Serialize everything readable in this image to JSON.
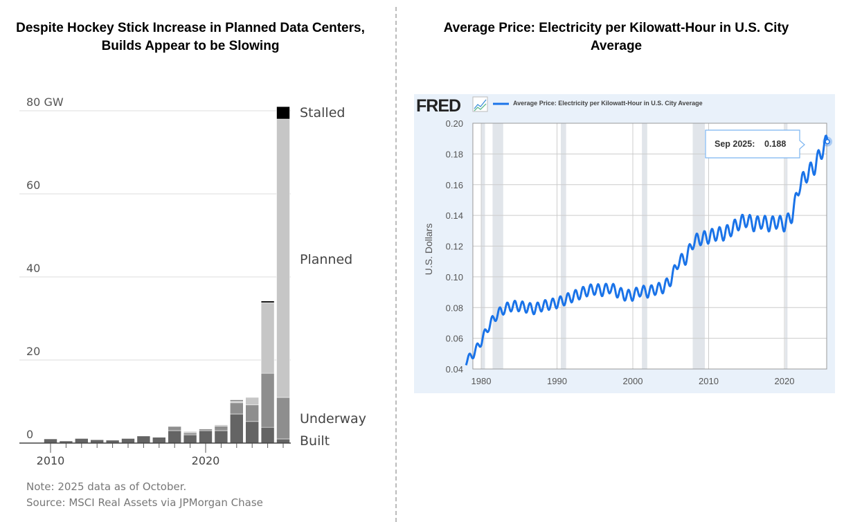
{
  "chart_data": [
    {
      "type": "bar",
      "stacked": true,
      "title": "Despite Hockey Stick Increase in Planned Data Centers, Builds Appear to be Slowing",
      "ylabel_unit": "GW",
      "ylim": [
        0,
        80
      ],
      "yticks": [
        "0",
        "20",
        "40",
        "60",
        "80 GW"
      ],
      "ytick_values": [
        0,
        20,
        40,
        60,
        80
      ],
      "xtick_labels": [
        "2010",
        "2020"
      ],
      "categories": [
        2010,
        2011,
        2012,
        2013,
        2014,
        2015,
        2016,
        2017,
        2018,
        2019,
        2020,
        2021,
        2022,
        2023,
        2024,
        2025
      ],
      "series": [
        {
          "name": "Built",
          "color": "#646464",
          "values": [
            1.0,
            0.5,
            1.1,
            0.8,
            0.7,
            1.1,
            1.7,
            1.4,
            3.0,
            2.0,
            3.0,
            3.0,
            7.0,
            5.2,
            3.8,
            1.0
          ]
        },
        {
          "name": "Underway",
          "color": "#8e8e8e",
          "values": [
            0,
            0,
            0,
            0,
            0,
            0,
            0,
            0,
            1.0,
            0.5,
            0.4,
            1.1,
            2.7,
            4.0,
            13.0,
            10.0
          ]
        },
        {
          "name": "Planned",
          "color": "#c6c6c6",
          "values": [
            0,
            0,
            0,
            0,
            0,
            0,
            0,
            0,
            0,
            0.3,
            0,
            0.3,
            0.5,
            1.8,
            17.0,
            67.0
          ]
        },
        {
          "name": "Stalled",
          "color": "#000000",
          "values": [
            0,
            0,
            0,
            0,
            0,
            0,
            0,
            0,
            0,
            0,
            0,
            0,
            0.2,
            0,
            0.4,
            3.0
          ]
        }
      ],
      "series_labels": [
        "Stalled",
        "Planned",
        "Underway",
        "Built"
      ],
      "notes": [
        "Note: 2025 data as of October.",
        "Source: MSCI Real Assets via JPMorgan Chase"
      ]
    },
    {
      "type": "line",
      "title": "Average Price: Electricity per Kilowatt-Hour in U.S. City Average",
      "logo": "FRED",
      "legend": "Average Price: Electricity per Kilowatt-Hour in U.S. City Average",
      "ylabel": "U.S. Dollars",
      "ylim": [
        0.04,
        0.2
      ],
      "yticks": [
        "0.04",
        "0.06",
        "0.08",
        "0.10",
        "0.12",
        "0.14",
        "0.16",
        "0.18",
        "0.20"
      ],
      "ytick_values": [
        0.04,
        0.06,
        0.08,
        0.1,
        0.12,
        0.14,
        0.16,
        0.18,
        0.2
      ],
      "xticks": [
        "1980",
        "1990",
        "2000",
        "2010",
        "2020"
      ],
      "xtick_values": [
        1980,
        1990,
        2000,
        2010,
        2020
      ],
      "line_color": "#1a73e8",
      "recessions": [
        [
          1980.0,
          1980.5
        ],
        [
          1981.5,
          1982.9
        ],
        [
          1990.5,
          1991.2
        ],
        [
          2001.2,
          2001.9
        ],
        [
          2007.9,
          2009.5
        ],
        [
          2020.1,
          2020.4
        ]
      ],
      "x": [
        1978,
        1979,
        1980,
        1981,
        1982,
        1983,
        1984,
        1985,
        1986,
        1987,
        1988,
        1989,
        1990,
        1991,
        1992,
        1993,
        1994,
        1995,
        1996,
        1997,
        1998,
        1999,
        2000,
        2001,
        2002,
        2003,
        2004,
        2005,
        2006,
        2007,
        2008,
        2009,
        2010,
        2011,
        2012,
        2013,
        2014,
        2015,
        2016,
        2017,
        2018,
        2019,
        2020,
        2021,
        2022,
        2023,
        2024,
        2025,
        2025.67
      ],
      "y": [
        0.045,
        0.05,
        0.058,
        0.068,
        0.075,
        0.079,
        0.081,
        0.081,
        0.08,
        0.079,
        0.081,
        0.082,
        0.083,
        0.085,
        0.087,
        0.089,
        0.091,
        0.092,
        0.091,
        0.093,
        0.09,
        0.088,
        0.088,
        0.091,
        0.09,
        0.092,
        0.093,
        0.098,
        0.11,
        0.112,
        0.123,
        0.125,
        0.126,
        0.128,
        0.128,
        0.131,
        0.135,
        0.137,
        0.134,
        0.136,
        0.134,
        0.136,
        0.134,
        0.14,
        0.16,
        0.167,
        0.172,
        0.183,
        0.188
      ],
      "tooltip": {
        "label": "Sep 2025:",
        "value": "0.188"
      }
    }
  ]
}
